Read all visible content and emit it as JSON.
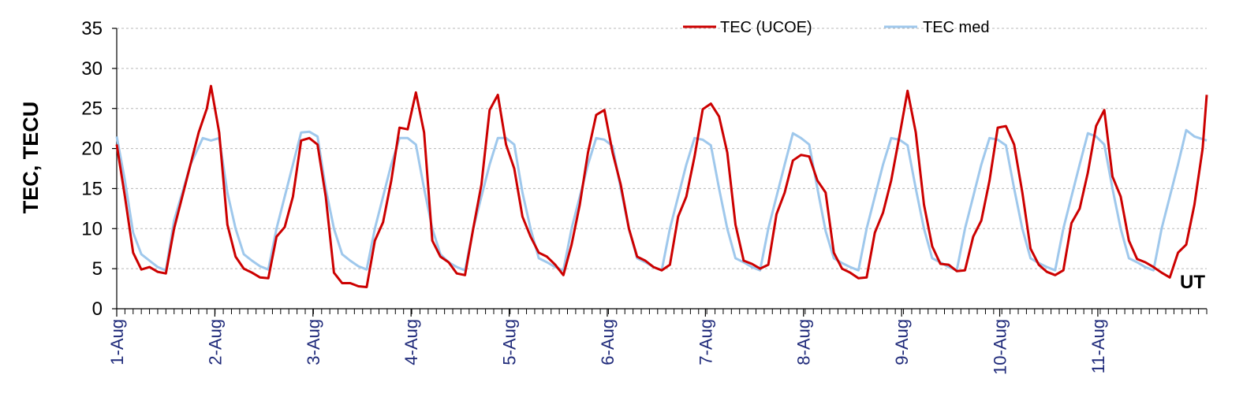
{
  "chart_data": {
    "type": "line",
    "ylabel": "TEC, TECU",
    "xlabel": "UT",
    "ylim": [
      0,
      35
    ],
    "yticks": [
      "0",
      "5",
      "10",
      "15",
      "20",
      "25",
      "30",
      "35"
    ],
    "xlim": [
      0,
      266
    ],
    "categories": [
      "1-Aug",
      "2-Aug",
      "3-Aug",
      "4-Aug",
      "5-Aug",
      "6-Aug",
      "7-Aug",
      "8-Aug",
      "9-Aug",
      "10-Aug",
      "11-Aug"
    ],
    "grid": true,
    "legend_position": "top-center",
    "series": [
      {
        "name": "TEC (UCOE)",
        "color": "#cc0000",
        "points": [
          [
            0,
            20.5
          ],
          [
            2,
            14
          ],
          [
            4,
            7
          ],
          [
            6,
            4.9
          ],
          [
            8,
            5.2
          ],
          [
            10,
            4.6
          ],
          [
            12,
            4.4
          ],
          [
            14,
            10
          ],
          [
            16,
            14
          ],
          [
            18,
            18
          ],
          [
            20,
            22
          ],
          [
            22,
            25
          ],
          [
            23,
            27.8
          ],
          [
            25,
            22
          ],
          [
            27,
            10.5
          ],
          [
            29,
            6.5
          ],
          [
            31,
            5
          ],
          [
            33,
            4.5
          ],
          [
            35,
            3.9
          ],
          [
            37,
            3.8
          ],
          [
            39,
            9
          ],
          [
            41,
            10.2
          ],
          [
            43,
            14
          ],
          [
            45,
            21
          ],
          [
            47,
            21.3
          ],
          [
            49,
            20.5
          ],
          [
            51,
            14
          ],
          [
            53,
            4.5
          ],
          [
            55,
            3.2
          ],
          [
            57,
            3.2
          ],
          [
            59,
            2.8
          ],
          [
            61,
            2.7
          ],
          [
            63,
            8.5
          ],
          [
            65,
            10.8
          ],
          [
            67,
            16
          ],
          [
            69,
            22.6
          ],
          [
            71,
            22.4
          ],
          [
            73,
            27
          ],
          [
            75,
            22
          ],
          [
            77,
            8.5
          ],
          [
            79,
            6.5
          ],
          [
            81,
            5.8
          ],
          [
            83,
            4.4
          ],
          [
            85,
            4.2
          ],
          [
            87,
            10
          ],
          [
            89,
            15.5
          ],
          [
            91,
            24.8
          ],
          [
            93,
            26.7
          ],
          [
            95,
            20.5
          ],
          [
            97,
            17.5
          ],
          [
            99,
            11.5
          ],
          [
            101,
            9
          ],
          [
            103,
            7
          ],
          [
            105,
            6.5
          ],
          [
            107,
            5.5
          ],
          [
            109,
            4.2
          ],
          [
            111,
            8
          ],
          [
            113,
            13
          ],
          [
            115,
            19.5
          ],
          [
            117,
            24.2
          ],
          [
            119,
            24.8
          ],
          [
            121,
            19.5
          ],
          [
            123,
            15.5
          ],
          [
            125,
            10
          ],
          [
            127,
            6.5
          ],
          [
            129,
            6
          ],
          [
            131,
            5.2
          ],
          [
            133,
            4.8
          ],
          [
            135,
            5.5
          ],
          [
            137,
            11.5
          ],
          [
            139,
            14
          ],
          [
            141,
            19
          ],
          [
            143,
            24.9
          ],
          [
            145,
            25.6
          ],
          [
            147,
            24
          ],
          [
            149,
            19.5
          ],
          [
            151,
            10.5
          ],
          [
            153,
            6
          ],
          [
            155,
            5.6
          ],
          [
            157,
            5
          ],
          [
            159,
            5.5
          ],
          [
            161,
            11.8
          ],
          [
            163,
            14.5
          ],
          [
            165,
            18.5
          ],
          [
            167,
            19.2
          ],
          [
            169,
            19
          ],
          [
            171,
            16
          ],
          [
            173,
            14.5
          ],
          [
            175,
            7
          ],
          [
            177,
            5
          ],
          [
            179,
            4.5
          ],
          [
            181,
            3.8
          ],
          [
            183,
            3.9
          ],
          [
            185,
            9.5
          ],
          [
            187,
            12
          ],
          [
            189,
            16
          ],
          [
            191,
            21.5
          ],
          [
            193,
            27.2
          ],
          [
            195,
            22
          ],
          [
            197,
            13
          ],
          [
            199,
            7.8
          ],
          [
            201,
            5.6
          ],
          [
            203,
            5.5
          ],
          [
            205,
            4.7
          ],
          [
            207,
            4.8
          ],
          [
            209,
            9
          ],
          [
            211,
            11
          ],
          [
            213,
            16
          ],
          [
            215,
            22.6
          ],
          [
            217,
            22.8
          ],
          [
            219,
            20.5
          ],
          [
            221,
            14.5
          ],
          [
            223,
            7.5
          ],
          [
            225,
            5.5
          ],
          [
            227,
            4.6
          ],
          [
            229,
            4.2
          ],
          [
            231,
            4.8
          ],
          [
            233,
            10.7
          ],
          [
            235,
            12.5
          ],
          [
            237,
            17
          ],
          [
            239,
            22.8
          ],
          [
            241,
            24.8
          ],
          [
            243,
            16.5
          ],
          [
            245,
            14
          ],
          [
            247,
            8.5
          ],
          [
            249,
            6.2
          ],
          [
            251,
            5.8
          ],
          [
            253,
            5.2
          ],
          [
            255,
            4.5
          ],
          [
            257,
            3.9
          ],
          [
            259,
            7
          ],
          [
            261,
            8
          ],
          [
            263,
            13
          ],
          [
            265,
            20
          ],
          [
            266,
            26.7
          ]
        ]
      },
      {
        "name": "TEC med",
        "color": "#9fc8ec",
        "points": [
          [
            0,
            21.5
          ],
          [
            2,
            16
          ],
          [
            4,
            9.5
          ],
          [
            6,
            6.8
          ],
          [
            8,
            6
          ],
          [
            10,
            5.2
          ],
          [
            12,
            4.8
          ],
          [
            14,
            11
          ],
          [
            16,
            14.5
          ],
          [
            18,
            18
          ],
          [
            21,
            21.3
          ],
          [
            23,
            21
          ],
          [
            25,
            21.3
          ],
          [
            27,
            14.5
          ],
          [
            29,
            10
          ],
          [
            31,
            6.8
          ],
          [
            33,
            6
          ],
          [
            35,
            5.3
          ],
          [
            37,
            4.9
          ],
          [
            39,
            10
          ],
          [
            41,
            14
          ],
          [
            43,
            18
          ],
          [
            45,
            22
          ],
          [
            47,
            22.1
          ],
          [
            49,
            21.5
          ],
          [
            51,
            15
          ],
          [
            53,
            10
          ],
          [
            55,
            6.8
          ],
          [
            57,
            6
          ],
          [
            59,
            5.3
          ],
          [
            61,
            4.9
          ],
          [
            63,
            10
          ],
          [
            65,
            14
          ],
          [
            67,
            18
          ],
          [
            69,
            21.3
          ],
          [
            71,
            21.3
          ],
          [
            73,
            20.5
          ],
          [
            75,
            15
          ],
          [
            77,
            10
          ],
          [
            79,
            6.8
          ],
          [
            81,
            5.8
          ],
          [
            83,
            5.2
          ],
          [
            85,
            4.8
          ],
          [
            87,
            10
          ],
          [
            89,
            14
          ],
          [
            91,
            18
          ],
          [
            93,
            21.3
          ],
          [
            95,
            21.3
          ],
          [
            97,
            20.5
          ],
          [
            99,
            14.5
          ],
          [
            101,
            10
          ],
          [
            103,
            6.3
          ],
          [
            105,
            5.8
          ],
          [
            107,
            5.2
          ],
          [
            109,
            4.8
          ],
          [
            111,
            10
          ],
          [
            113,
            14
          ],
          [
            115,
            18
          ],
          [
            117,
            21.3
          ],
          [
            119,
            21.1
          ],
          [
            121,
            20.3
          ],
          [
            123,
            15
          ],
          [
            125,
            10
          ],
          [
            127,
            6.3
          ],
          [
            129,
            5.8
          ],
          [
            131,
            5.2
          ],
          [
            133,
            4.8
          ],
          [
            135,
            10
          ],
          [
            137,
            14
          ],
          [
            139,
            18
          ],
          [
            141,
            21.3
          ],
          [
            143,
            21.1
          ],
          [
            145,
            20.4
          ],
          [
            147,
            15
          ],
          [
            149,
            10
          ],
          [
            151,
            6.3
          ],
          [
            153,
            5.8
          ],
          [
            155,
            5.2
          ],
          [
            157,
            4.8
          ],
          [
            159,
            10
          ],
          [
            161,
            14
          ],
          [
            163,
            18
          ],
          [
            165,
            21.9
          ],
          [
            167,
            21.3
          ],
          [
            169,
            20.5
          ],
          [
            171,
            15
          ],
          [
            173,
            9.7
          ],
          [
            175,
            6.3
          ],
          [
            177,
            5.7
          ],
          [
            179,
            5.2
          ],
          [
            181,
            4.8
          ],
          [
            183,
            10
          ],
          [
            185,
            14
          ],
          [
            187,
            18
          ],
          [
            189,
            21.3
          ],
          [
            191,
            21.1
          ],
          [
            193,
            20.4
          ],
          [
            195,
            15
          ],
          [
            197,
            10
          ],
          [
            199,
            6.3
          ],
          [
            201,
            5.8
          ],
          [
            203,
            5.2
          ],
          [
            205,
            4.8
          ],
          [
            207,
            10
          ],
          [
            209,
            14
          ],
          [
            211,
            18
          ],
          [
            213,
            21.3
          ],
          [
            215,
            21.1
          ],
          [
            217,
            20.4
          ],
          [
            219,
            15
          ],
          [
            221,
            10
          ],
          [
            223,
            6.3
          ],
          [
            225,
            5.7
          ],
          [
            227,
            5.2
          ],
          [
            229,
            4.8
          ],
          [
            231,
            10
          ],
          [
            233,
            14
          ],
          [
            235,
            18
          ],
          [
            237,
            21.9
          ],
          [
            239,
            21.5
          ],
          [
            241,
            20.5
          ],
          [
            243,
            15
          ],
          [
            245,
            10
          ],
          [
            247,
            6.3
          ],
          [
            249,
            5.8
          ],
          [
            251,
            5.2
          ],
          [
            253,
            4.8
          ],
          [
            255,
            10
          ],
          [
            257,
            14
          ],
          [
            259,
            18
          ],
          [
            261,
            22.3
          ],
          [
            263,
            21.5
          ],
          [
            266,
            21
          ]
        ]
      }
    ]
  }
}
